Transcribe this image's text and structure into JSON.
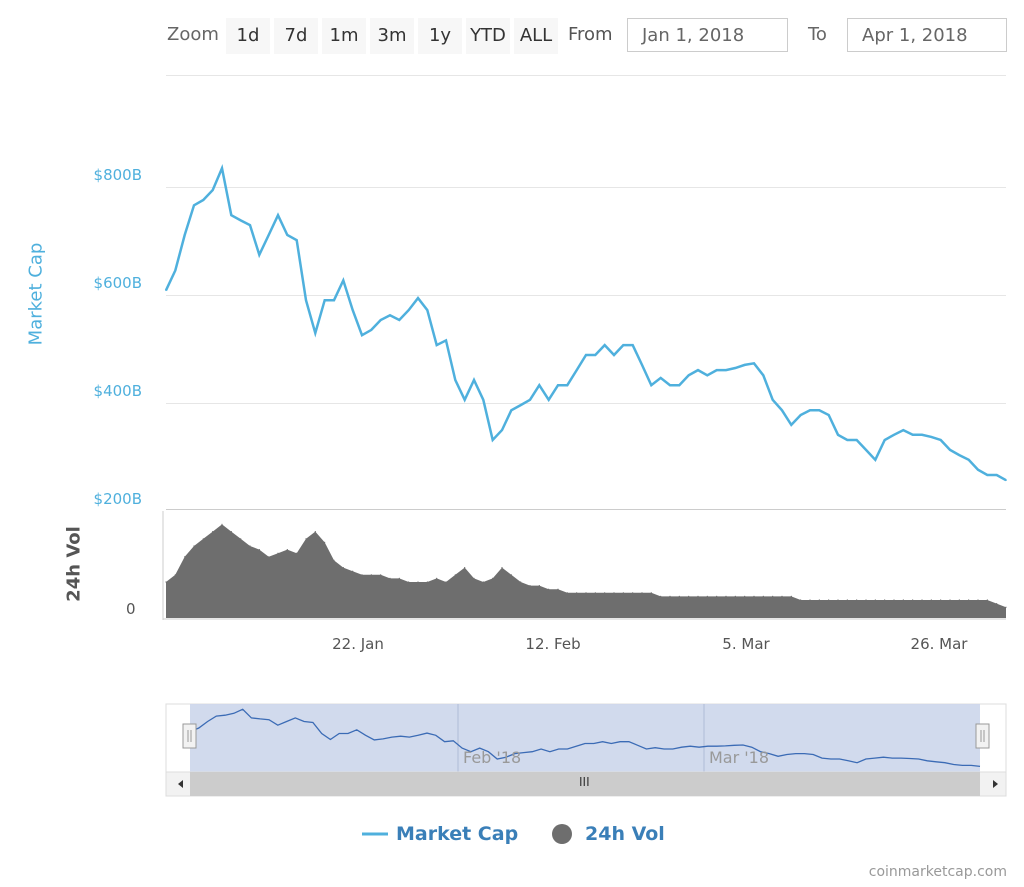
{
  "range_selector": {
    "zoom_label": "Zoom",
    "buttons": [
      "1d",
      "7d",
      "1m",
      "3m",
      "1y",
      "YTD",
      "ALL"
    ],
    "from_label": "From",
    "from_value": "Jan 1, 2018",
    "to_label": "To",
    "to_value": "Apr 1, 2018"
  },
  "navigator": {
    "labels": [
      "Feb '18",
      "Mar '18"
    ],
    "scrollbar_grip": "III"
  },
  "legend": {
    "market_cap": "Market Cap",
    "volume": "24h Vol"
  },
  "credits": "coinmarketcap.com",
  "colors": {
    "market_cap": "#4fb0dd",
    "volume": "#6e6e6e",
    "navigator_fill": "#ccd6eb",
    "navigator_line": "#3b6bb5",
    "legend_text": "#3a7fb8"
  },
  "chart_data": {
    "type": "line",
    "x_start": "2018-01-01",
    "x_end": "2018-04-01",
    "x_ticks": [
      "22. Jan",
      "12. Feb",
      "5. Mar",
      "26. Mar"
    ],
    "x_tick_days": [
      21,
      42,
      63,
      84
    ],
    "y_axis": {
      "title": "Market Cap",
      "ticks": [
        "$200B",
        "$400B",
        "$600B",
        "$800B"
      ],
      "tick_values": [
        200,
        400,
        600,
        800
      ],
      "ylim": [
        200,
        800
      ]
    },
    "vol_axis": {
      "title": "24h Vol",
      "ticks": [
        "0"
      ],
      "ylim": [
        0,
        30
      ]
    },
    "series": [
      {
        "name": "Market Cap",
        "unit": "B USD",
        "values": [
          602,
          640,
          708,
          765,
          775,
          794,
          836,
          746,
          736,
          727,
          670,
          708,
          746,
          708,
          698,
          583,
          520,
          583,
          583,
          621,
          564,
          516,
          526,
          545,
          554,
          545,
          564,
          587,
          564,
          497,
          506,
          430,
          392,
          430,
          392,
          315,
          334,
          372,
          382,
          392,
          420,
          392,
          420,
          420,
          449,
          478,
          478,
          497,
          478,
          497,
          497,
          459,
          420,
          434,
          420,
          420,
          439,
          449,
          439,
          449,
          449,
          453,
          459,
          462,
          439,
          392,
          372,
          344,
          363,
          372,
          372,
          363,
          325,
          315,
          315,
          296,
          277,
          315,
          325,
          334,
          325,
          325,
          321,
          315,
          296,
          286,
          277,
          258,
          248,
          248,
          238
        ]
      },
      {
        "name": "24h Vol",
        "unit": "B USD",
        "values": [
          10,
          12,
          17,
          20,
          22,
          24,
          26,
          24,
          22,
          20,
          19,
          17,
          18,
          19,
          18,
          22,
          24,
          21,
          16,
          14,
          13,
          12,
          12,
          12,
          11,
          11,
          10,
          10,
          10,
          11,
          10,
          12,
          14,
          11,
          10,
          11,
          14,
          12,
          10,
          9,
          9,
          8,
          8,
          7,
          7,
          7,
          7,
          7,
          7,
          7,
          7,
          7,
          7,
          6,
          6,
          6,
          6,
          6,
          6,
          6,
          6,
          6,
          6,
          6,
          6,
          6,
          6,
          6,
          5,
          5,
          5,
          5,
          5,
          5,
          5,
          5,
          5,
          5,
          5,
          5,
          5,
          5,
          5,
          5,
          5,
          5,
          5,
          5,
          5,
          4,
          3
        ]
      }
    ]
  }
}
